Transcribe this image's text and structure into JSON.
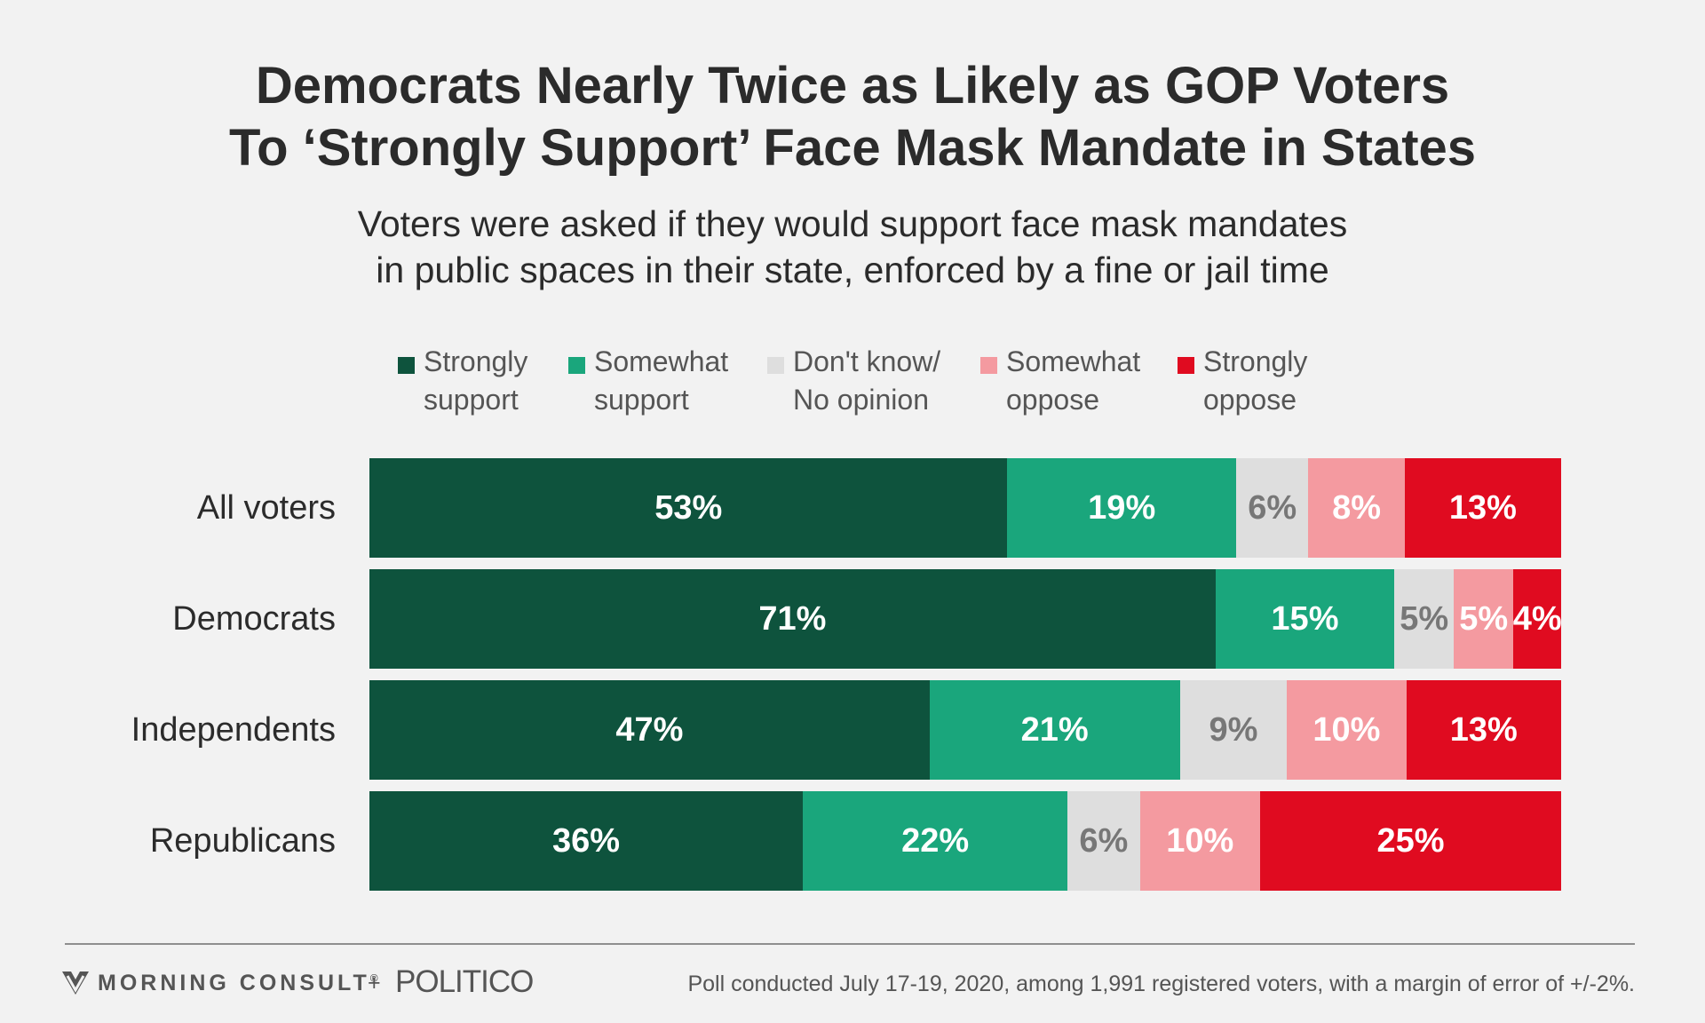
{
  "title": {
    "line1": "Democrats Nearly Twice as Likely as GOP Voters",
    "line2": "To ‘Strongly Support’ Face Mask Mandate in States"
  },
  "subtitle": {
    "line1": "Voters were asked if they would support face mask mandates",
    "line2": "in public spaces in their state, enforced by a fine or jail time"
  },
  "footer": {
    "brand1": "MORNING CONSULT",
    "brand1_mark": "®",
    "plus": "+",
    "brand2": "POLITICO",
    "source": "Poll conducted July 17-19, 2020, among 1,991 registered voters, with a margin of error of +/-2%."
  },
  "chart_data": {
    "type": "bar",
    "orientation": "horizontal",
    "stacked": true,
    "normalized": true,
    "categories": [
      "All voters",
      "Democrats",
      "Independents",
      "Republicans"
    ],
    "series": [
      {
        "name": "Strongly support",
        "name_lines": [
          "Strongly",
          "support"
        ],
        "color": "#0e533d",
        "label_color": "#ffffff",
        "values": [
          53,
          71,
          47,
          36
        ],
        "labels": [
          "53%",
          "71%",
          "47%",
          "36%"
        ]
      },
      {
        "name": "Somewhat support",
        "name_lines": [
          "Somewhat",
          "support"
        ],
        "color": "#1aa67c",
        "label_color": "#ffffff",
        "values": [
          19,
          15,
          21,
          22
        ],
        "labels": [
          "19%",
          "15%",
          "21%",
          "22%"
        ]
      },
      {
        "name": "Don't know/ No opinion",
        "name_lines": [
          "Don't know/",
          "No opinion"
        ],
        "color": "#dedede",
        "label_color": "#777777",
        "values": [
          6,
          5,
          9,
          6
        ],
        "labels": [
          "6%",
          "5%",
          "9%",
          "6%"
        ]
      },
      {
        "name": "Somewhat oppose",
        "name_lines": [
          "Somewhat",
          "oppose"
        ],
        "color": "#f49aa0",
        "label_color": "#ffffff",
        "values": [
          8,
          5,
          10,
          10
        ],
        "labels": [
          "8%",
          "5%",
          "10%",
          "10%"
        ]
      },
      {
        "name": "Strongly oppose",
        "name_lines": [
          "Strongly",
          "oppose"
        ],
        "color": "#e00b20",
        "label_color": "#ffffff",
        "values": [
          13,
          4,
          13,
          25
        ],
        "labels": [
          "13%",
          "4%",
          "13%",
          "25%"
        ]
      }
    ],
    "legend_position": "top",
    "grid": false
  }
}
